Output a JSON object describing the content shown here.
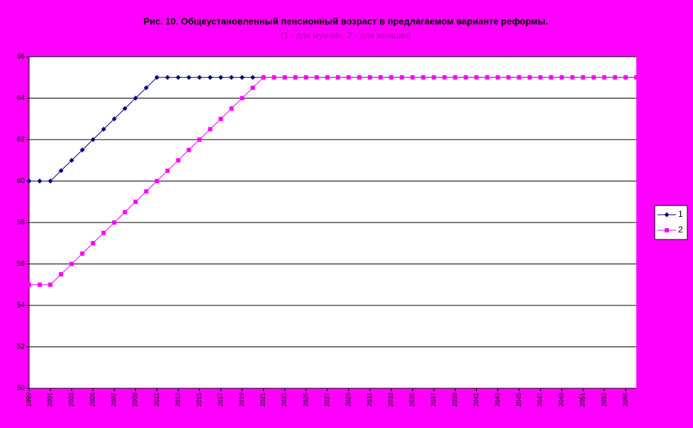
{
  "chart_data": {
    "type": "line",
    "title": "Рис. 10. Общеустановленный пенсионный возраст в предлагаемом варианте реформы.",
    "subtitle": "(1 - для мужчин, 2 - для женщин)",
    "x": [
      1999,
      2000,
      2001,
      2002,
      2003,
      2004,
      2005,
      2006,
      2007,
      2008,
      2009,
      2010,
      2011,
      2012,
      2013,
      2014,
      2015,
      2016,
      2017,
      2018,
      2019,
      2020,
      2021,
      2022,
      2023,
      2024,
      2025,
      2026,
      2027,
      2028,
      2029,
      2030,
      2031,
      2032,
      2033,
      2034,
      2035,
      2036,
      2037,
      2038,
      2039,
      2040,
      2041,
      2042,
      2043,
      2044,
      2045,
      2046,
      2047,
      2048,
      2049,
      2050,
      2051,
      2052,
      2053,
      2054,
      2055,
      2056
    ],
    "series": [
      {
        "name": "1",
        "color": "#000080",
        "marker": "diamond",
        "values": [
          60,
          60,
          60,
          60.5,
          61,
          61.5,
          62,
          62.5,
          63,
          63.5,
          64,
          64.5,
          65,
          65,
          65,
          65,
          65,
          65,
          65,
          65,
          65,
          65,
          65,
          65,
          65,
          65,
          65,
          65,
          65,
          65,
          65,
          65,
          65,
          65,
          65,
          65,
          65,
          65,
          65,
          65,
          65,
          65,
          65,
          65,
          65,
          65,
          65,
          65,
          65,
          65,
          65,
          65,
          65,
          65,
          65,
          65,
          65,
          65
        ]
      },
      {
        "name": "2",
        "color": "#ff00ff",
        "marker": "square",
        "values": [
          55,
          55,
          55,
          55.5,
          56,
          56.5,
          57,
          57.5,
          58,
          58.5,
          59,
          59.5,
          60,
          60.5,
          61,
          61.5,
          62,
          62.5,
          63,
          63.5,
          64,
          64.5,
          65,
          65,
          65,
          65,
          65,
          65,
          65,
          65,
          65,
          65,
          65,
          65,
          65,
          65,
          65,
          65,
          65,
          65,
          65,
          65,
          65,
          65,
          65,
          65,
          65,
          65,
          65,
          65,
          65,
          65,
          65,
          65,
          65,
          65,
          65,
          65
        ]
      }
    ],
    "xlim": [
      1999,
      2056
    ],
    "xticks": [
      1999,
      2001,
      2003,
      2005,
      2007,
      2009,
      2011,
      2013,
      2015,
      2017,
      2019,
      2021,
      2023,
      2025,
      2027,
      2029,
      2031,
      2033,
      2035,
      2037,
      2039,
      2041,
      2043,
      2045,
      2047,
      2049,
      2051,
      2053,
      2055
    ],
    "ylim": [
      50,
      66
    ],
    "yticks": [
      50,
      52,
      54,
      56,
      58,
      60,
      62,
      64,
      66
    ],
    "grid": true
  }
}
